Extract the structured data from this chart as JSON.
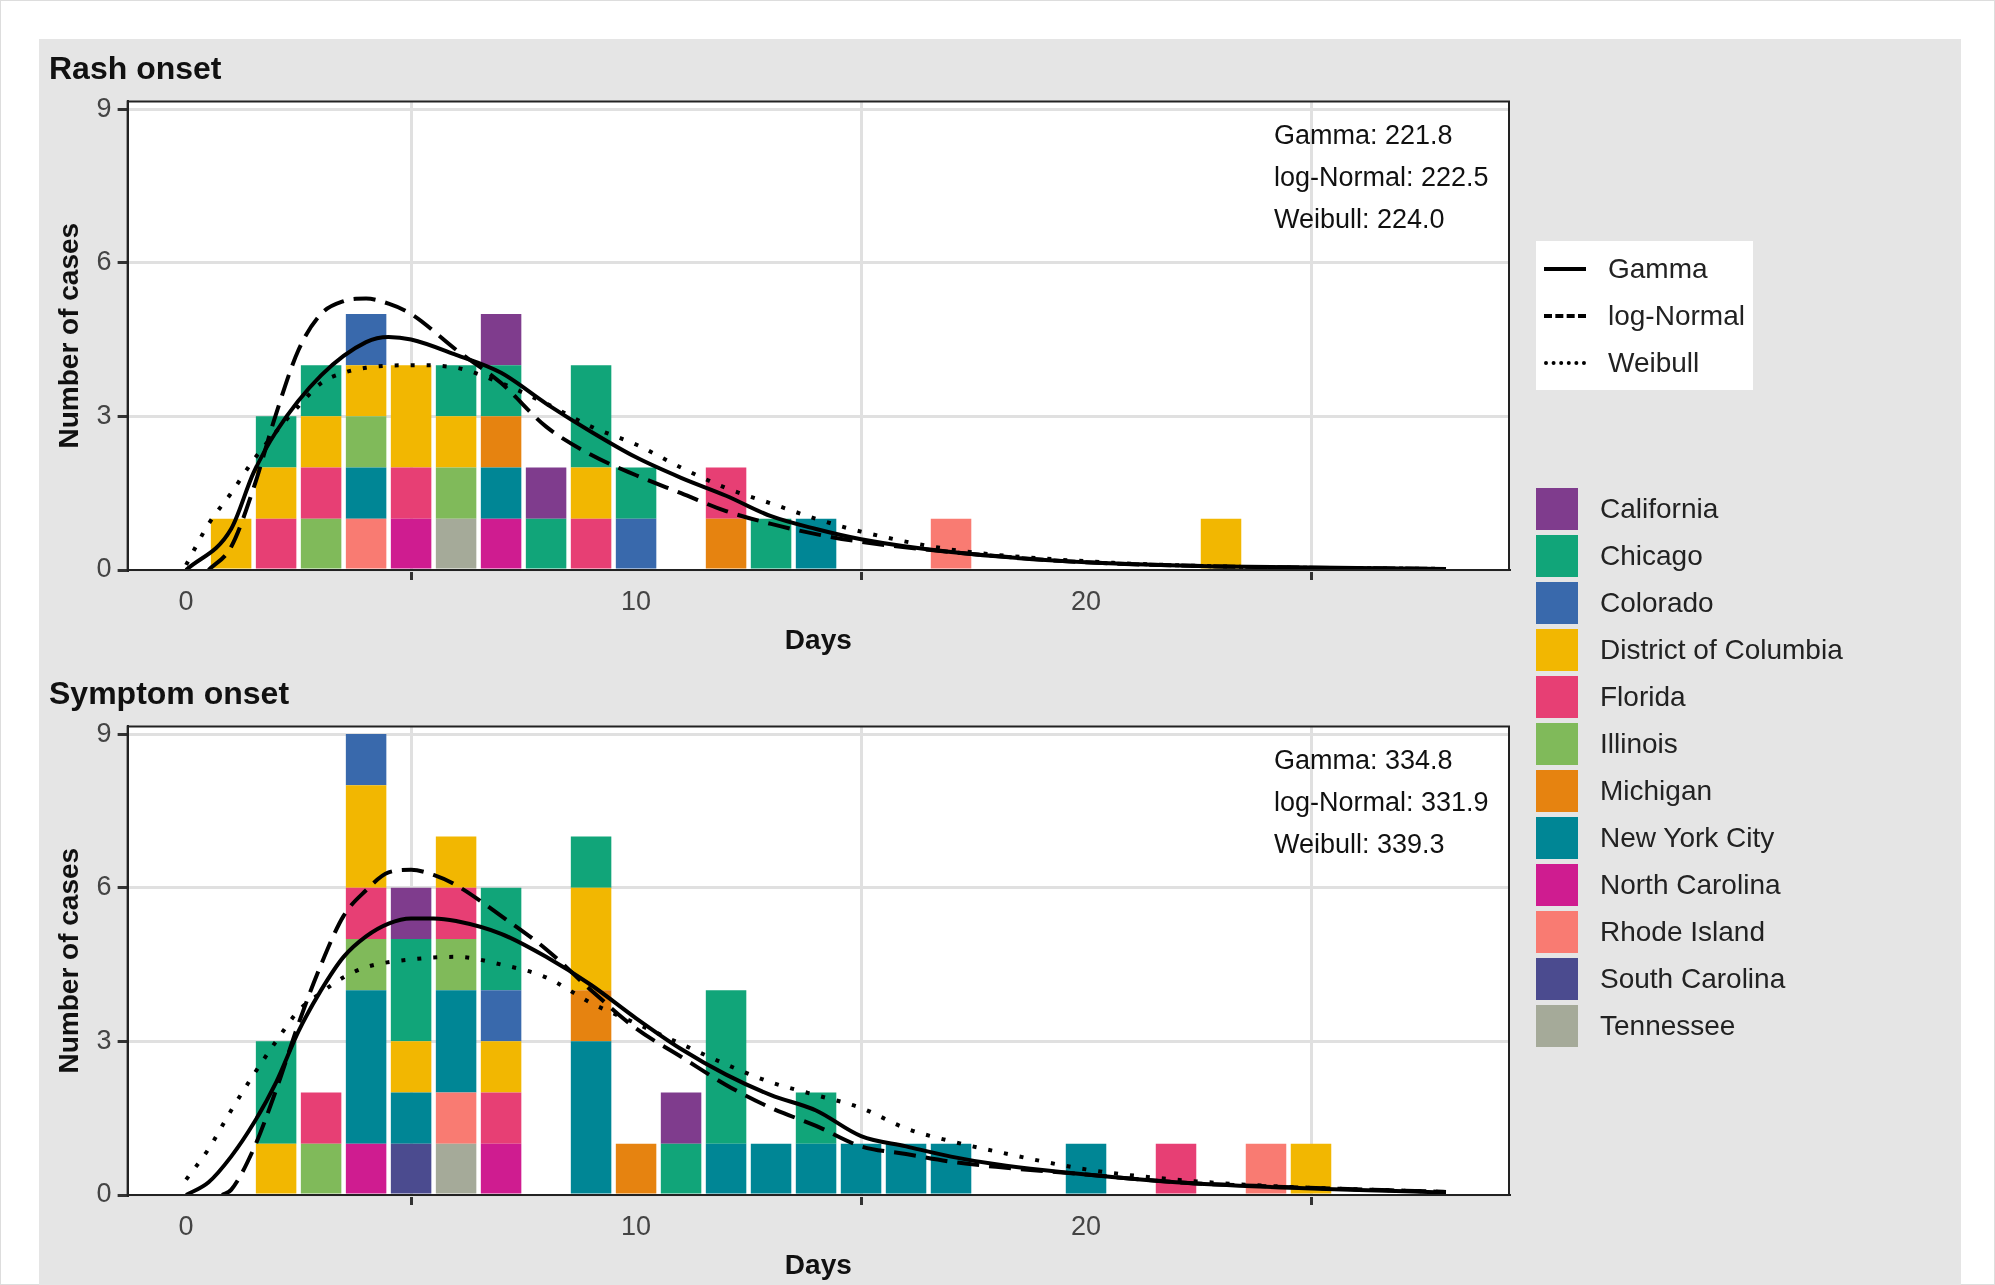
{
  "chart_data": [
    {
      "type": "bar",
      "title": "Rash onset",
      "xlabel": "Days",
      "ylabel": "Number of cases",
      "stacked": true,
      "grid": true,
      "legend": "right",
      "xlim": [
        -1.3,
        29.4
      ],
      "xticks": [
        0,
        10,
        20
      ],
      "ylim": [
        0,
        9.15
      ],
      "yticks": [
        0,
        3,
        6,
        9
      ],
      "annotations": [
        "Gamma: 221.8",
        "log-Normal: 222.5",
        "Weibull: 224.0"
      ],
      "x": [
        1,
        2,
        3,
        4,
        5,
        6,
        7,
        8,
        9,
        10,
        11,
        12,
        13,
        14,
        15,
        16,
        17,
        18,
        19,
        20,
        21,
        22,
        23
      ],
      "series": [
        {
          "name": "Tennessee",
          "color": "#a5aa99",
          "values": [
            null,
            null,
            null,
            null,
            null,
            1,
            null,
            null,
            null,
            null,
            null,
            null,
            null,
            null,
            null,
            null,
            null,
            null,
            null,
            null,
            null,
            null,
            null
          ]
        },
        {
          "name": "South Carolina",
          "color": "#4b4b8f",
          "values": [
            null,
            null,
            null,
            null,
            null,
            null,
            null,
            null,
            null,
            null,
            null,
            null,
            null,
            null,
            null,
            null,
            null,
            null,
            null,
            null,
            null,
            null,
            null
          ]
        },
        {
          "name": "Rhode Island",
          "color": "#f97b72",
          "values": [
            null,
            null,
            null,
            1,
            null,
            null,
            null,
            null,
            null,
            null,
            null,
            null,
            null,
            null,
            null,
            null,
            1,
            null,
            null,
            null,
            null,
            null,
            null
          ]
        },
        {
          "name": "North Carolina",
          "color": "#cf1c90",
          "values": [
            null,
            null,
            null,
            null,
            1,
            null,
            1,
            null,
            null,
            null,
            null,
            null,
            null,
            null,
            null,
            null,
            null,
            null,
            null,
            null,
            null,
            null,
            null
          ]
        },
        {
          "name": "New York City",
          "color": "#008695",
          "values": [
            null,
            null,
            null,
            1,
            null,
            null,
            1,
            null,
            null,
            null,
            null,
            null,
            null,
            1,
            null,
            null,
            null,
            null,
            null,
            null,
            null,
            null,
            null
          ]
        },
        {
          "name": "Michigan",
          "color": "#e68310",
          "values": [
            null,
            null,
            null,
            null,
            null,
            null,
            1,
            null,
            null,
            null,
            null,
            1,
            null,
            null,
            null,
            null,
            null,
            null,
            null,
            null,
            null,
            null,
            null
          ]
        },
        {
          "name": "Illinois",
          "color": "#80ba5a",
          "values": [
            null,
            null,
            1,
            1,
            null,
            1,
            null,
            null,
            null,
            null,
            null,
            null,
            null,
            null,
            null,
            null,
            null,
            null,
            null,
            null,
            null,
            null,
            null
          ]
        },
        {
          "name": "Florida",
          "color": "#e73f74",
          "values": [
            null,
            1,
            1,
            null,
            1,
            null,
            null,
            null,
            1,
            null,
            null,
            1,
            null,
            null,
            null,
            null,
            null,
            null,
            null,
            null,
            null,
            null,
            null
          ]
        },
        {
          "name": "District of Columbia",
          "color": "#f2b701",
          "values": [
            1,
            1,
            1,
            1,
            2,
            1,
            null,
            null,
            1,
            null,
            null,
            null,
            null,
            null,
            null,
            null,
            null,
            null,
            null,
            null,
            null,
            null,
            1
          ]
        },
        {
          "name": "Colorado",
          "color": "#3969ac",
          "values": [
            null,
            null,
            null,
            1,
            null,
            null,
            null,
            null,
            null,
            1,
            null,
            null,
            null,
            null,
            null,
            null,
            null,
            null,
            null,
            null,
            null,
            null,
            null
          ]
        },
        {
          "name": "Chicago",
          "color": "#11a579",
          "values": [
            null,
            1,
            1,
            null,
            null,
            1,
            1,
            1,
            2,
            1,
            null,
            null,
            1,
            null,
            null,
            null,
            null,
            null,
            null,
            null,
            null,
            null,
            null
          ]
        },
        {
          "name": "California",
          "color": "#7f3c8d",
          "values": [
            null,
            null,
            null,
            null,
            null,
            null,
            1,
            1,
            null,
            null,
            null,
            null,
            null,
            null,
            null,
            null,
            null,
            null,
            null,
            null,
            null,
            null,
            null
          ]
        },
        {
          "name": "Gamma",
          "type": "line",
          "line_style": "solid",
          "color": "#000000",
          "x": [
            0,
            1,
            1.5,
            2,
            3,
            4,
            4.5,
            5,
            6,
            7,
            8,
            9,
            10,
            11,
            12,
            13,
            14,
            15,
            17,
            20,
            23,
            28
          ],
          "values": [
            0,
            0.8,
            1.9,
            2.7,
            3.8,
            4.45,
            4.55,
            4.5,
            4.2,
            3.85,
            3.25,
            2.7,
            2.2,
            1.8,
            1.45,
            1.05,
            0.8,
            0.6,
            0.35,
            0.15,
            0.07,
            0.02
          ]
        },
        {
          "name": "log-Normal",
          "type": "line",
          "line_style": "dashed",
          "color": "#000000",
          "x": [
            0.5,
            1,
            1.5,
            2,
            2.5,
            3,
            3.5,
            4,
            4.5,
            5,
            6,
            7,
            8,
            9,
            10,
            11,
            12,
            13,
            14,
            15,
            17,
            20,
            23,
            28
          ],
          "values": [
            0,
            0.45,
            1.6,
            3.05,
            4.3,
            5.0,
            5.25,
            5.3,
            5.2,
            5.0,
            4.3,
            3.65,
            2.8,
            2.25,
            1.85,
            1.5,
            1.15,
            0.9,
            0.7,
            0.55,
            0.35,
            0.15,
            0.07,
            0.02
          ]
        },
        {
          "name": "Weibull",
          "type": "line",
          "line_style": "dotted",
          "color": "#000000",
          "x": [
            0,
            0.5,
            1,
            1.5,
            2,
            2.5,
            3,
            3.5,
            4,
            5,
            6,
            7,
            8,
            9,
            10,
            11,
            12,
            13,
            14,
            15,
            17,
            20,
            23,
            28
          ],
          "values": [
            0.1,
            0.9,
            1.5,
            2.15,
            2.7,
            3.2,
            3.65,
            3.85,
            3.95,
            4.0,
            3.95,
            3.65,
            3.25,
            2.8,
            2.45,
            2.0,
            1.6,
            1.3,
            1.0,
            0.75,
            0.4,
            0.17,
            0.07,
            0.02
          ]
        }
      ]
    },
    {
      "type": "bar",
      "title": "Symptom onset",
      "xlabel": "Days",
      "ylabel": "Number of cases",
      "stacked": true,
      "grid": true,
      "xlim": [
        -1.3,
        29.4
      ],
      "xticks": [
        0,
        10,
        20
      ],
      "ylim": [
        0,
        9.15
      ],
      "yticks": [
        0,
        3,
        6,
        9
      ],
      "annotations": [
        "Gamma: 334.8",
        "log-Normal: 331.9",
        "Weibull: 339.3"
      ],
      "x": [
        2,
        3,
        4,
        5,
        6,
        7,
        8,
        9,
        10,
        11,
        12,
        13,
        14,
        15,
        16,
        17,
        18,
        19,
        20,
        21,
        22,
        23,
        24,
        25
      ],
      "series": [
        {
          "color": "#a5aa99",
          "values": [
            null,
            null,
            null,
            null,
            1,
            null,
            null,
            null,
            null,
            null,
            null,
            null,
            null,
            null,
            null,
            null,
            null,
            null,
            null,
            null,
            null,
            null,
            null,
            null
          ]
        },
        {
          "color": "#4b4b8f",
          "values": [
            null,
            null,
            null,
            1,
            null,
            null,
            null,
            null,
            null,
            null,
            null,
            null,
            null,
            null,
            null,
            null,
            null,
            null,
            null,
            null,
            null,
            null,
            null,
            null
          ]
        },
        {
          "color": "#f97b72",
          "values": [
            null,
            null,
            null,
            null,
            1,
            null,
            null,
            null,
            null,
            null,
            null,
            null,
            null,
            null,
            null,
            null,
            null,
            null,
            null,
            null,
            null,
            null,
            1,
            null
          ]
        },
        {
          "color": "#cf1c90",
          "values": [
            null,
            null,
            1,
            null,
            null,
            1,
            null,
            null,
            null,
            null,
            null,
            null,
            null,
            null,
            null,
            null,
            null,
            null,
            null,
            null,
            null,
            null,
            null,
            null
          ]
        },
        {
          "color": "#008695",
          "values": [
            null,
            null,
            3,
            1,
            2,
            null,
            null,
            3,
            null,
            null,
            1,
            1,
            1,
            1,
            1,
            1,
            null,
            null,
            1,
            null,
            null,
            null,
            null,
            null
          ]
        },
        {
          "color": "#e68310",
          "values": [
            null,
            null,
            null,
            null,
            null,
            null,
            null,
            1,
            1,
            null,
            null,
            null,
            null,
            null,
            null,
            null,
            null,
            null,
            null,
            null,
            null,
            null,
            null,
            null
          ]
        },
        {
          "color": "#80ba5a",
          "values": [
            null,
            1,
            1,
            null,
            1,
            null,
            null,
            null,
            null,
            null,
            null,
            null,
            null,
            null,
            null,
            null,
            null,
            null,
            null,
            null,
            null,
            null,
            null,
            null
          ]
        },
        {
          "color": "#e73f74",
          "values": [
            null,
            1,
            1,
            null,
            1,
            1,
            null,
            null,
            null,
            null,
            null,
            null,
            null,
            null,
            null,
            null,
            null,
            null,
            null,
            null,
            1,
            null,
            null,
            null
          ]
        },
        {
          "color": "#f2b701",
          "values": [
            1,
            null,
            2,
            1,
            1,
            1,
            null,
            2,
            null,
            null,
            null,
            null,
            null,
            null,
            null,
            null,
            null,
            null,
            null,
            null,
            null,
            null,
            null,
            1
          ]
        },
        {
          "color": "#3969ac",
          "values": [
            null,
            null,
            1,
            null,
            null,
            1,
            null,
            null,
            null,
            null,
            null,
            null,
            null,
            null,
            null,
            null,
            null,
            null,
            null,
            null,
            null,
            null,
            null,
            null
          ]
        },
        {
          "color": "#11a579",
          "values": [
            2,
            null,
            null,
            2,
            null,
            2,
            null,
            1,
            null,
            1,
            3,
            null,
            1,
            null,
            null,
            null,
            null,
            null,
            null,
            null,
            null,
            null,
            null,
            null
          ]
        },
        {
          "color": "#7f3c8d",
          "values": [
            null,
            null,
            null,
            1,
            null,
            null,
            null,
            null,
            null,
            1,
            null,
            null,
            null,
            null,
            null,
            null,
            null,
            null,
            null,
            null,
            null,
            null,
            null,
            null
          ]
        },
        {
          "type": "line",
          "line_style": "solid",
          "color": "#000000",
          "x": [
            0,
            0.5,
            1,
            1.5,
            2,
            2.5,
            3,
            3.5,
            4,
            4.5,
            5,
            5.5,
            6,
            7,
            8,
            9,
            10,
            11,
            12,
            13,
            14,
            15,
            16,
            17,
            18,
            20,
            22,
            24,
            28
          ],
          "values": [
            0,
            0.25,
            0.75,
            1.4,
            2.2,
            3.2,
            4.0,
            4.65,
            5.05,
            5.3,
            5.4,
            5.4,
            5.35,
            5.1,
            4.65,
            4.1,
            3.45,
            2.85,
            2.35,
            1.95,
            1.65,
            1.15,
            0.95,
            0.75,
            0.6,
            0.4,
            0.25,
            0.16,
            0.05
          ]
        },
        {
          "type": "line",
          "line_style": "dashed",
          "color": "#000000",
          "x": [
            0.8,
            1,
            1.5,
            2,
            2.5,
            3,
            3.5,
            4,
            4.5,
            5,
            5.5,
            6,
            7,
            8,
            9,
            10,
            11,
            12,
            13,
            14,
            15,
            16,
            17,
            18,
            20,
            22,
            24,
            28
          ],
          "values": [
            0,
            0.1,
            0.9,
            2.05,
            3.35,
            4.5,
            5.45,
            5.95,
            6.3,
            6.35,
            6.25,
            6.05,
            5.45,
            4.8,
            4.0,
            3.25,
            2.7,
            2.15,
            1.7,
            1.35,
            0.95,
            0.8,
            0.65,
            0.55,
            0.4,
            0.25,
            0.17,
            0.06
          ]
        },
        {
          "type": "line",
          "line_style": "dotted",
          "color": "#000000",
          "x": [
            0,
            0.5,
            1,
            1.5,
            2,
            2.5,
            3,
            3.5,
            4,
            5,
            6,
            7,
            8,
            9,
            10,
            11,
            12,
            13,
            14,
            15,
            16,
            17,
            18,
            20,
            22,
            24,
            28
          ],
          "values": [
            0.3,
            0.9,
            1.65,
            2.35,
            3.0,
            3.6,
            3.95,
            4.25,
            4.45,
            4.6,
            4.65,
            4.5,
            4.25,
            3.75,
            3.35,
            2.95,
            2.55,
            2.2,
            1.95,
            1.7,
            1.3,
            1.05,
            0.85,
            0.5,
            0.3,
            0.18,
            0.06
          ]
        }
      ]
    }
  ]
}
